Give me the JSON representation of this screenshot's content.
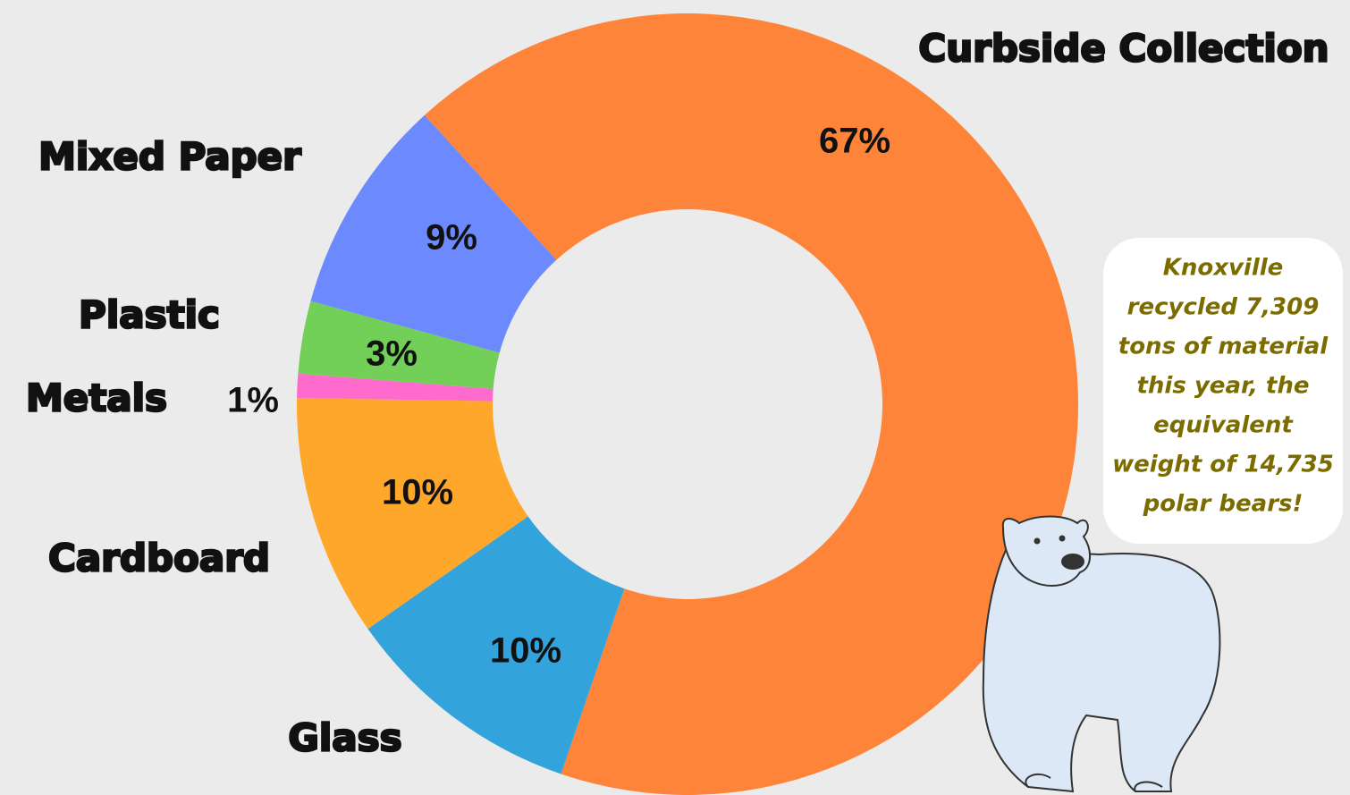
{
  "chart_data": {
    "type": "pie",
    "categories": [
      "Curbside Collection",
      "Glass",
      "Cardboard",
      "Metals",
      "Plastic",
      "Mixed Paper"
    ],
    "values": [
      67,
      10,
      10,
      1,
      3,
      9
    ],
    "value_labels": [
      "67%",
      "10%",
      "10%",
      "1%",
      "3%",
      "9%"
    ],
    "colors": [
      "#fe843a",
      "#33a3dc",
      "#fea72a",
      "#ff6bcd",
      "#72cf58",
      "#6c89fe"
    ],
    "annotation": [
      "Knoxville",
      "recycled 7,309",
      "tons of material",
      "this year, the",
      "equivalent",
      "weight of 14,735",
      "polar bears!"
    ]
  }
}
